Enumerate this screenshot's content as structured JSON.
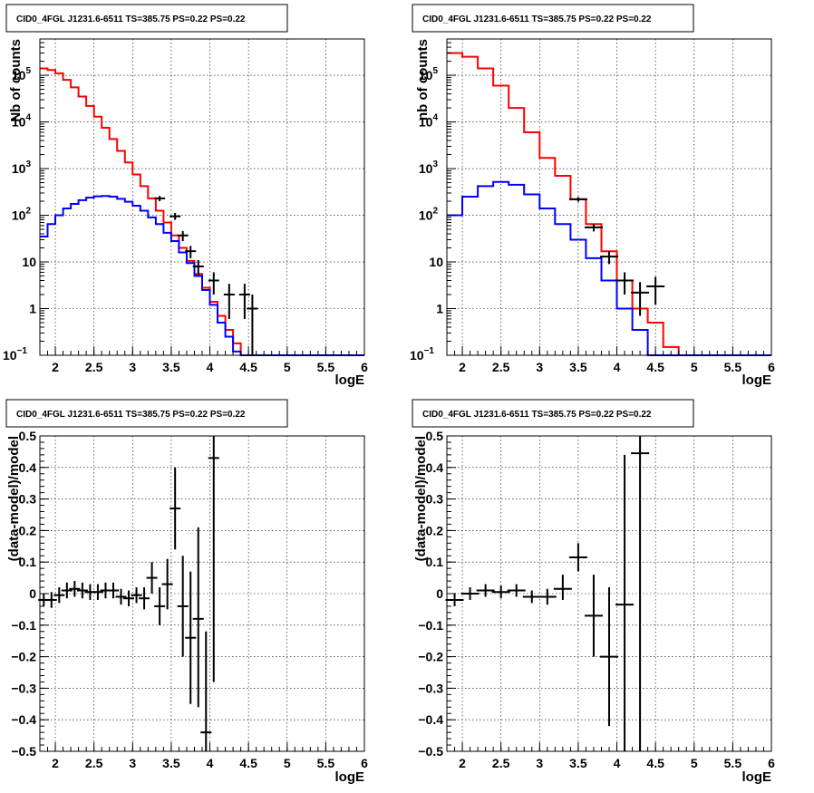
{
  "chart_data": [
    {
      "type": "line",
      "title": "CID0_4FGL J1231.6-6511 TS=385.75 PS=0.22 PS=0.22",
      "xlabel": "logE",
      "ylabel": "Nb of counts",
      "xlim": [
        1.8,
        6.0
      ],
      "ylim": [
        0.1,
        600000
      ],
      "yscale": "log",
      "grid": true,
      "xticks": [
        "2",
        "2.5",
        "3",
        "3.5",
        "4",
        "4.5",
        "5",
        "5.5",
        "6"
      ],
      "bin_edges": [
        1.8,
        1.9,
        2.0,
        2.1,
        2.2,
        2.3,
        2.4,
        2.5,
        2.6,
        2.7,
        2.8,
        2.9,
        3.0,
        3.1,
        3.2,
        3.3,
        3.4,
        3.5,
        3.6,
        3.7,
        3.8,
        3.9,
        4.0,
        4.1,
        4.2,
        4.3,
        4.4,
        4.5,
        4.6,
        4.7,
        4.8,
        4.9,
        5.0,
        5.1,
        5.2,
        5.3,
        5.4,
        5.5,
        5.6,
        5.7,
        5.8,
        5.9,
        6.0
      ],
      "series": [
        {
          "color": "#ff0000",
          "values": [
            140000,
            130000,
            110000,
            80000,
            55000,
            35000,
            22000,
            13000,
            7500,
            4300,
            2400,
            1350,
            750,
            420,
            230,
            125,
            70,
            37,
            20,
            10.5,
            5.5,
            2.8,
            1.4,
            0.7,
            0.35,
            0.18,
            0.1,
            0.1,
            0.1,
            0.1,
            0.1,
            0.1,
            0.1,
            0.1,
            0.1,
            0.1,
            0.1,
            0.1,
            0.1,
            0.1,
            0.1,
            0.1
          ]
        },
        {
          "color": "#0000ff",
          "values": [
            35,
            65,
            100,
            140,
            175,
            210,
            240,
            255,
            260,
            250,
            225,
            195,
            160,
            125,
            90,
            65,
            42,
            28,
            16,
            9.5,
            5,
            2.5,
            1.2,
            0.5,
            0.25,
            0.12,
            0.1,
            0.1,
            0.1,
            0.1,
            0.1,
            0.1,
            0.1,
            0.1,
            0.1,
            0.1,
            0.1,
            0.1,
            0.1,
            0.1,
            0.1,
            0.1
          ]
        }
      ],
      "points": [
        {
          "x": 3.35,
          "y": 230,
          "ylo": 200,
          "yhi": 260
        },
        {
          "x": 3.55,
          "y": 95,
          "ylo": 80,
          "yhi": 112
        },
        {
          "x": 3.65,
          "y": 37,
          "ylo": 28,
          "yhi": 46
        },
        {
          "x": 3.75,
          "y": 17,
          "ylo": 12,
          "yhi": 22
        },
        {
          "x": 3.85,
          "y": 8,
          "ylo": 5,
          "yhi": 11
        },
        {
          "x": 4.05,
          "y": 4,
          "ylo": 2,
          "yhi": 6
        },
        {
          "x": 4.25,
          "y": 2,
          "ylo": 0.6,
          "yhi": 3.4
        },
        {
          "x": 4.45,
          "y": 2,
          "ylo": 0.6,
          "yhi": 3.4
        },
        {
          "x": 4.55,
          "y": 1,
          "ylo": 0.1,
          "yhi": 2
        }
      ]
    },
    {
      "type": "line",
      "title": "CID0_4FGL J1231.6-6511 TS=385.75 PS=0.22 PS=0.22",
      "xlabel": "logE",
      "ylabel": "nb of counts",
      "xlim": [
        1.8,
        6.0
      ],
      "ylim": [
        0.1,
        600000
      ],
      "yscale": "log",
      "grid": true,
      "xticks": [
        "2",
        "2.5",
        "3",
        "3.5",
        "4",
        "4.5",
        "5",
        "5.5",
        "6"
      ],
      "bin_edges": [
        1.8,
        2.0,
        2.2,
        2.4,
        2.6,
        2.8,
        3.0,
        3.2,
        3.4,
        3.6,
        3.8,
        4.0,
        4.2,
        4.4,
        4.6,
        4.8,
        5.0,
        5.2,
        5.4,
        5.6,
        5.8,
        6.0
      ],
      "series": [
        {
          "color": "#ff0000",
          "values": [
            300000,
            250000,
            140000,
            60000,
            20000,
            6000,
            1700,
            700,
            220,
            65,
            17,
            4,
            1,
            0.5,
            0.15,
            0.1,
            0.1,
            0.1,
            0.1,
            0.1,
            0.1
          ]
        },
        {
          "color": "#0000ff",
          "values": [
            100,
            250,
            420,
            520,
            450,
            280,
            140,
            65,
            30,
            12,
            4,
            1,
            0.35,
            0.1,
            0.1,
            0.1,
            0.1,
            0.1,
            0.1,
            0.1,
            0.1
          ]
        }
      ],
      "points": [
        {
          "x": 3.5,
          "y": 220,
          "ylo": 195,
          "yhi": 245
        },
        {
          "x": 3.7,
          "y": 55,
          "ylo": 45,
          "yhi": 65
        },
        {
          "x": 3.9,
          "y": 13,
          "ylo": 9,
          "yhi": 17
        },
        {
          "x": 4.1,
          "y": 4,
          "ylo": 2,
          "yhi": 6
        },
        {
          "x": 4.3,
          "y": 2.2,
          "ylo": 0.7,
          "yhi": 3.7
        },
        {
          "x": 4.5,
          "y": 3,
          "ylo": 1.2,
          "yhi": 4.8
        }
      ]
    },
    {
      "type": "scatter",
      "title": "CID0_4FGL J1231.6-6511 TS=385.75 PS=0.22 PS=0.22",
      "xlabel": "logE",
      "ylabel": "(data-model)/model",
      "xlim": [
        1.8,
        6.0
      ],
      "ylim": [
        -0.5,
        0.5
      ],
      "yscale": "linear",
      "grid": true,
      "xticks": [
        "2",
        "2.5",
        "3",
        "3.5",
        "4",
        "4.5",
        "5",
        "5.5",
        "6"
      ],
      "yticks": [
        "-0.5",
        "-0.4",
        "-0.3",
        "-0.2",
        "-0.1",
        "0",
        "0.1",
        "0.2",
        "0.3",
        "0.4",
        "0.5"
      ],
      "series": [],
      "points": [
        {
          "x": 1.85,
          "y": -0.02,
          "ylo": -0.04,
          "yhi": 0.0
        },
        {
          "x": 1.95,
          "y": -0.02,
          "ylo": -0.045,
          "yhi": 0.005
        },
        {
          "x": 2.05,
          "y": -0.005,
          "ylo": -0.03,
          "yhi": 0.02
        },
        {
          "x": 2.15,
          "y": 0.01,
          "ylo": -0.015,
          "yhi": 0.035
        },
        {
          "x": 2.25,
          "y": 0.015,
          "ylo": -0.01,
          "yhi": 0.04
        },
        {
          "x": 2.35,
          "y": 0.01,
          "ylo": -0.015,
          "yhi": 0.035
        },
        {
          "x": 2.45,
          "y": 0.005,
          "ylo": -0.02,
          "yhi": 0.03
        },
        {
          "x": 2.55,
          "y": 0.005,
          "ylo": -0.02,
          "yhi": 0.03
        },
        {
          "x": 2.65,
          "y": 0.01,
          "ylo": -0.015,
          "yhi": 0.035
        },
        {
          "x": 2.75,
          "y": 0.01,
          "ylo": -0.015,
          "yhi": 0.035
        },
        {
          "x": 2.85,
          "y": -0.01,
          "ylo": -0.035,
          "yhi": 0.015
        },
        {
          "x": 2.95,
          "y": -0.015,
          "ylo": -0.04,
          "yhi": 0.01
        },
        {
          "x": 3.05,
          "y": -0.005,
          "ylo": -0.03,
          "yhi": 0.02
        },
        {
          "x": 3.15,
          "y": -0.015,
          "ylo": -0.05,
          "yhi": 0.02
        },
        {
          "x": 3.25,
          "y": 0.05,
          "ylo": 0.0,
          "yhi": 0.1
        },
        {
          "x": 3.35,
          "y": -0.04,
          "ylo": -0.1,
          "yhi": 0.02
        },
        {
          "x": 3.45,
          "y": 0.03,
          "ylo": -0.05,
          "yhi": 0.11
        },
        {
          "x": 3.55,
          "y": 0.27,
          "ylo": 0.14,
          "yhi": 0.4
        },
        {
          "x": 3.65,
          "y": -0.04,
          "ylo": -0.2,
          "yhi": 0.12
        },
        {
          "x": 3.75,
          "y": -0.14,
          "ylo": -0.35,
          "yhi": 0.07
        },
        {
          "x": 3.85,
          "y": -0.08,
          "ylo": -0.36,
          "yhi": 0.21
        },
        {
          "x": 3.95,
          "y": -0.44,
          "ylo": -0.5,
          "yhi": -0.12
        },
        {
          "x": 4.05,
          "y": 0.43,
          "ylo": -0.28,
          "yhi": 0.5
        }
      ]
    },
    {
      "type": "scatter",
      "title": "CID0_4FGL J1231.6-6511 TS=385.75 PS=0.22 PS=0.22",
      "xlabel": "logE",
      "ylabel": "(data-model)/model",
      "xlim": [
        1.8,
        6.0
      ],
      "ylim": [
        -0.5,
        0.5
      ],
      "yscale": "linear",
      "grid": true,
      "xticks": [
        "2",
        "2.5",
        "3",
        "3.5",
        "4",
        "4.5",
        "5",
        "5.5",
        "6"
      ],
      "yticks": [
        "-0.5",
        "-0.4",
        "-0.3",
        "-0.2",
        "-0.1",
        "0",
        "0.1",
        "0.2",
        "0.3",
        "0.4",
        "0.5"
      ],
      "series": [],
      "points": [
        {
          "x": 1.9,
          "y": -0.02,
          "ylo": -0.04,
          "yhi": 0.0
        },
        {
          "x": 2.1,
          "y": 0.0,
          "ylo": -0.02,
          "yhi": 0.02
        },
        {
          "x": 2.3,
          "y": 0.01,
          "ylo": -0.01,
          "yhi": 0.03
        },
        {
          "x": 2.5,
          "y": 0.005,
          "ylo": -0.015,
          "yhi": 0.025
        },
        {
          "x": 2.7,
          "y": 0.01,
          "ylo": -0.01,
          "yhi": 0.03
        },
        {
          "x": 2.9,
          "y": -0.01,
          "ylo": -0.03,
          "yhi": 0.01
        },
        {
          "x": 3.1,
          "y": -0.01,
          "ylo": -0.035,
          "yhi": 0.015
        },
        {
          "x": 3.3,
          "y": 0.015,
          "ylo": -0.02,
          "yhi": 0.06
        },
        {
          "x": 3.5,
          "y": 0.115,
          "ylo": 0.07,
          "yhi": 0.16
        },
        {
          "x": 3.7,
          "y": -0.07,
          "ylo": -0.2,
          "yhi": 0.06
        },
        {
          "x": 3.9,
          "y": -0.2,
          "ylo": -0.42,
          "yhi": 0.02
        },
        {
          "x": 4.1,
          "y": -0.035,
          "ylo": -0.5,
          "yhi": 0.44
        },
        {
          "x": 4.3,
          "y": 0.445,
          "ylo": -0.5,
          "yhi": 0.5
        }
      ]
    }
  ]
}
